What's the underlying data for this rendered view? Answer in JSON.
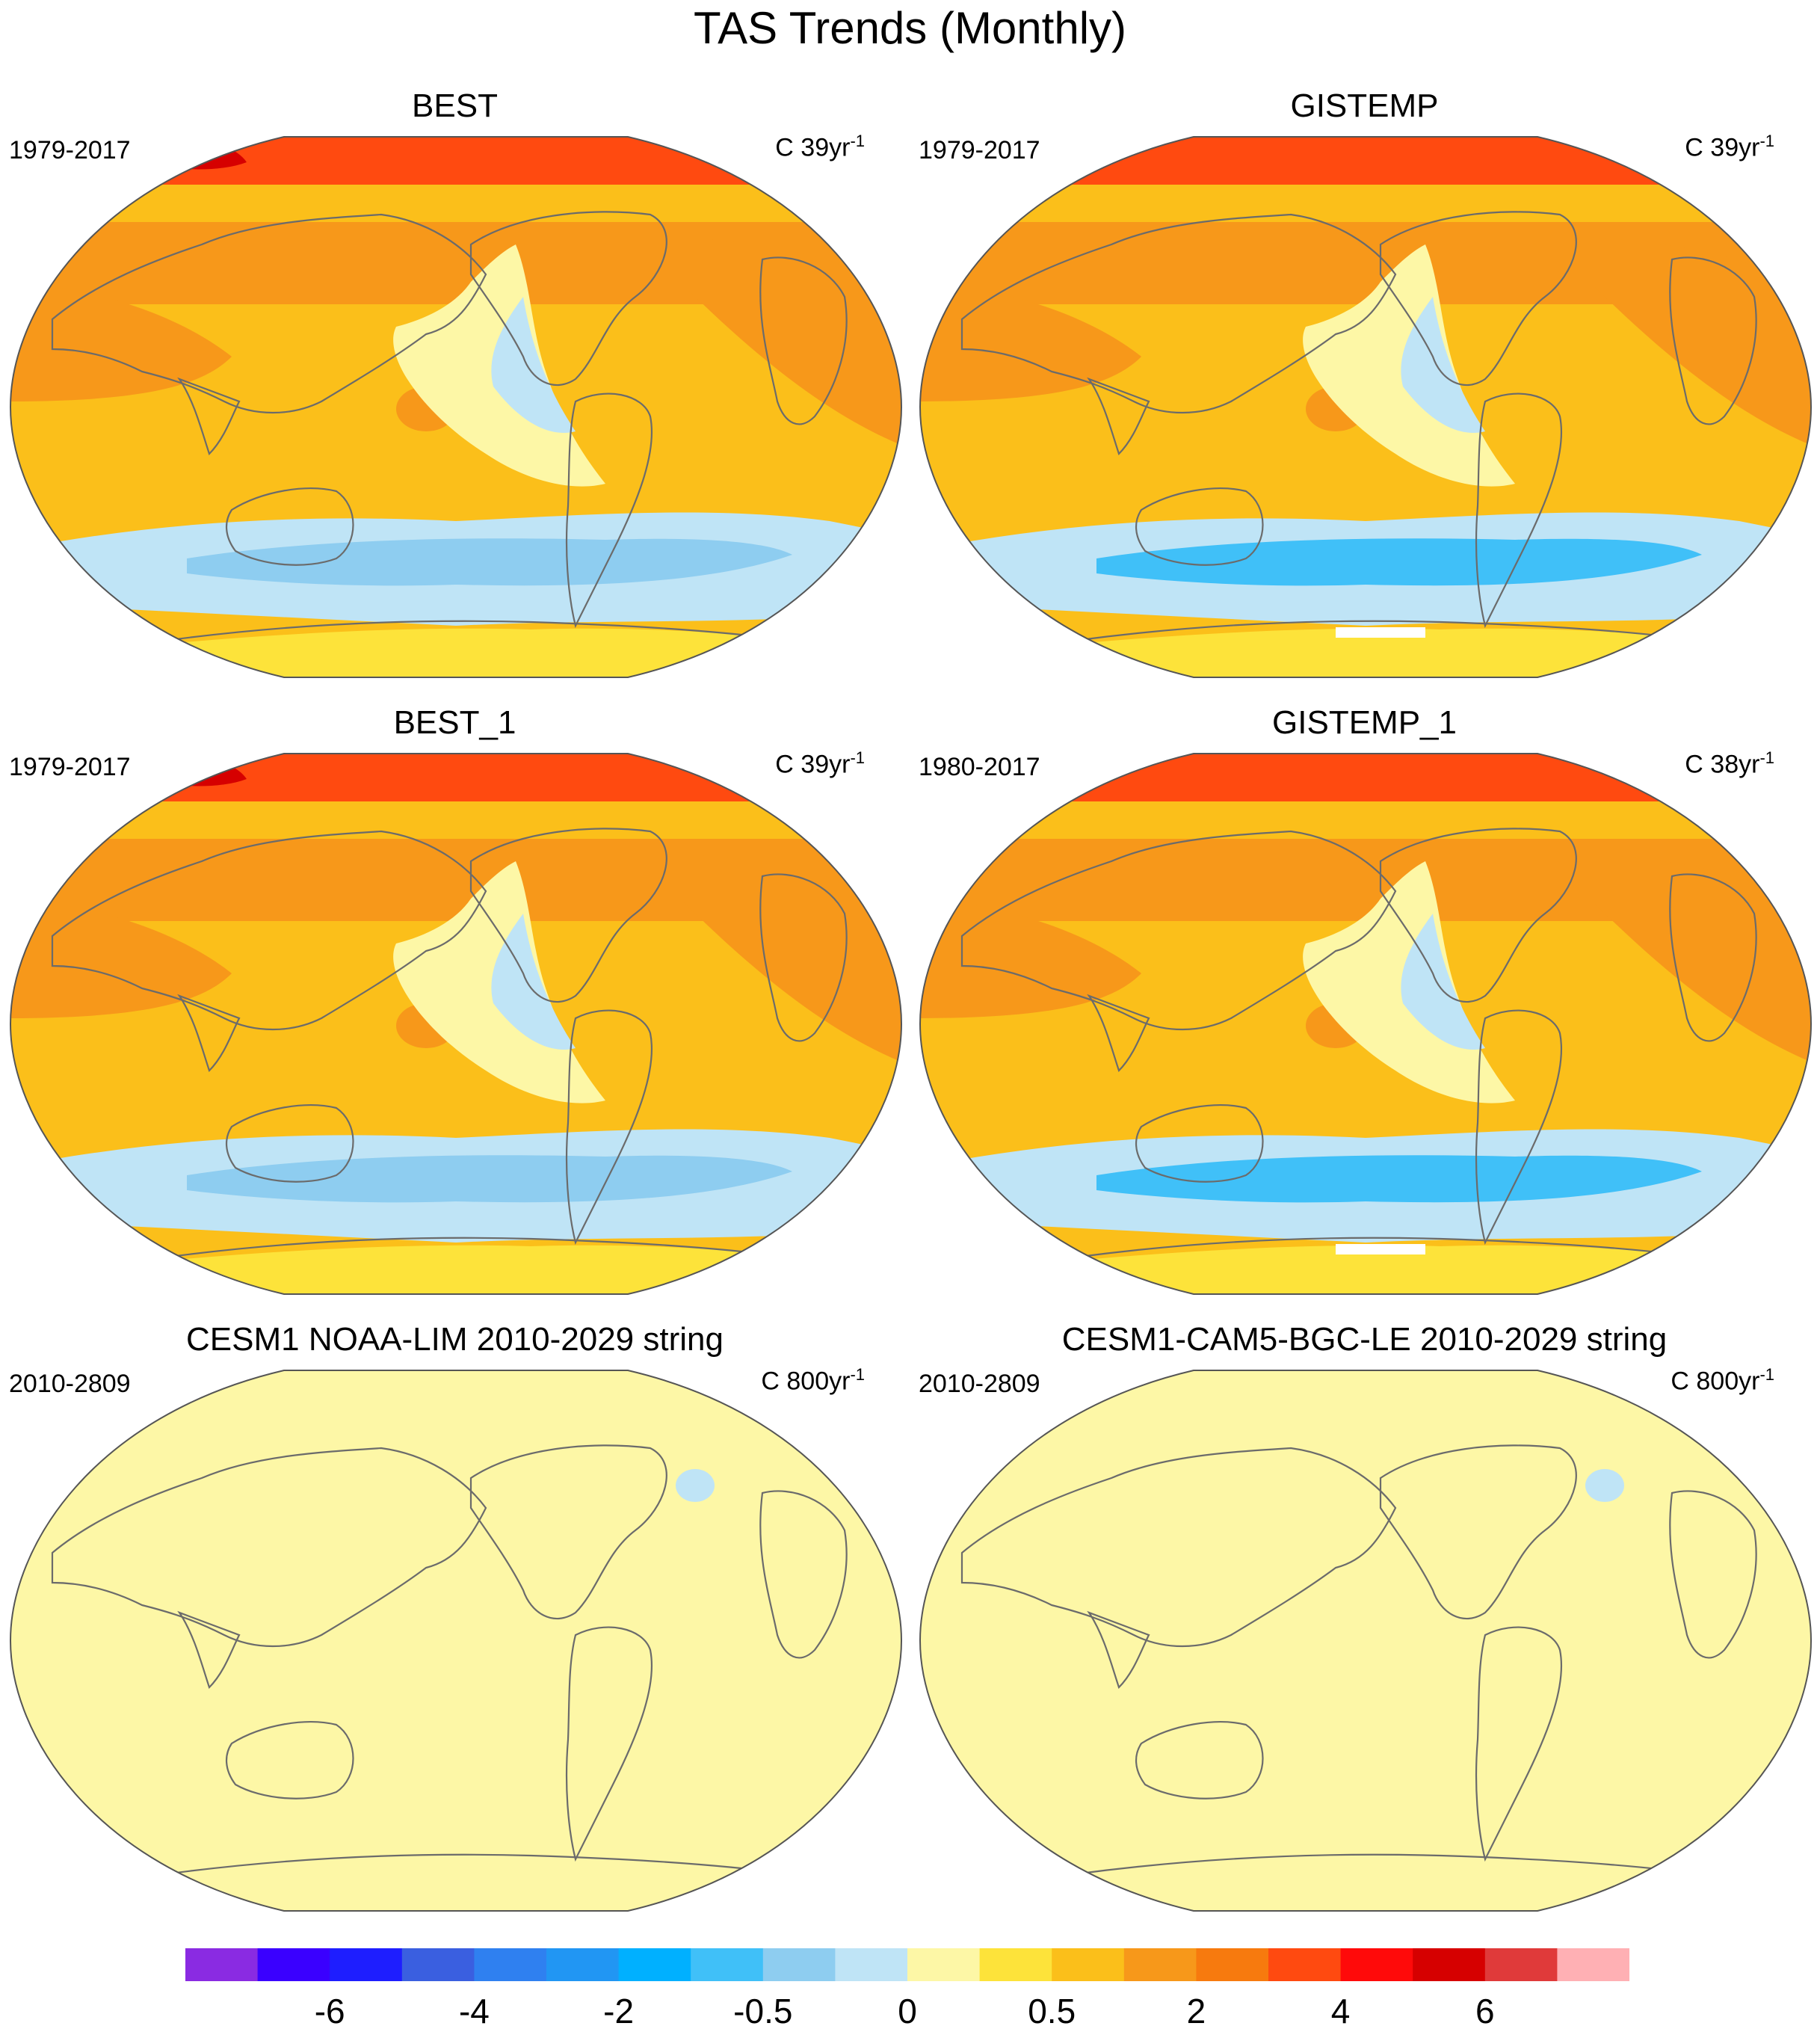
{
  "title": "TAS Trends (Monthly)",
  "panels": [
    {
      "id": "best",
      "title": "BEST",
      "period": "1979-2017",
      "units_prefix": "C ",
      "units_base": "39yr",
      "units_exp": "-1",
      "field": "obs_best"
    },
    {
      "id": "gistemp",
      "title": "GISTEMP",
      "period": "1979-2017",
      "units_prefix": "C ",
      "units_base": "39yr",
      "units_exp": "-1",
      "field": "obs_gis"
    },
    {
      "id": "best1",
      "title": "BEST_1",
      "period": "1979-2017",
      "units_prefix": "C ",
      "units_base": "39yr",
      "units_exp": "-1",
      "field": "obs_best"
    },
    {
      "id": "gistemp1",
      "title": "GISTEMP_1",
      "period": "1980-2017",
      "units_prefix": "C ",
      "units_base": "38yr",
      "units_exp": "-1",
      "field": "obs_gis"
    },
    {
      "id": "cesm1lim",
      "title": "CESM1 NOAA-LIM 2010-2029 string",
      "period": "2010-2809",
      "units_prefix": "C ",
      "units_base": "800yr",
      "units_exp": "-1",
      "field": "flat"
    },
    {
      "id": "cesm1le",
      "title": "CESM1-CAM5-BGC-LE 2010-2029 string",
      "period": "2010-2809",
      "units_prefix": "C ",
      "units_base": "800yr",
      "units_exp": "-1",
      "field": "flat"
    }
  ],
  "colorbar": {
    "colors": [
      "#8a2be2",
      "#3a00ff",
      "#1e1eff",
      "#3a5fe0",
      "#2f80f0",
      "#2196f3",
      "#00b0ff",
      "#40c0f8",
      "#8ecdf0",
      "#bfe4f6",
      "#fdf7a6",
      "#fde33a",
      "#fbbf1a",
      "#f7981a",
      "#f77a0e",
      "#ff4a10",
      "#ff0a0a",
      "#d60000",
      "#e03a3a",
      "#ffb0b4"
    ],
    "labels": [
      "-6",
      "-4",
      "-2",
      "-0.5",
      "0",
      "0.5",
      "2",
      "4",
      "6"
    ],
    "label_positions": [
      2,
      4,
      6,
      8,
      10,
      12,
      14,
      16,
      18
    ]
  },
  "chart_data": {
    "type": "map",
    "projection": "Robinson",
    "variable": "TAS trend",
    "units": "C per period",
    "contour_levels": [
      -8,
      -7,
      -6,
      -5,
      -4,
      -3,
      -2,
      -1,
      -0.5,
      -0.25,
      0,
      0.25,
      0.5,
      1,
      2,
      3,
      4,
      5,
      6,
      7,
      8
    ],
    "notes": "Observed trends mostly positive (0.5-2), strongest in Arctic (4-6); cooling in eastern Pacific and Southern Ocean (-0.5 to -2). Model panels near 0 everywhere with small negative patch in North Atlantic."
  }
}
